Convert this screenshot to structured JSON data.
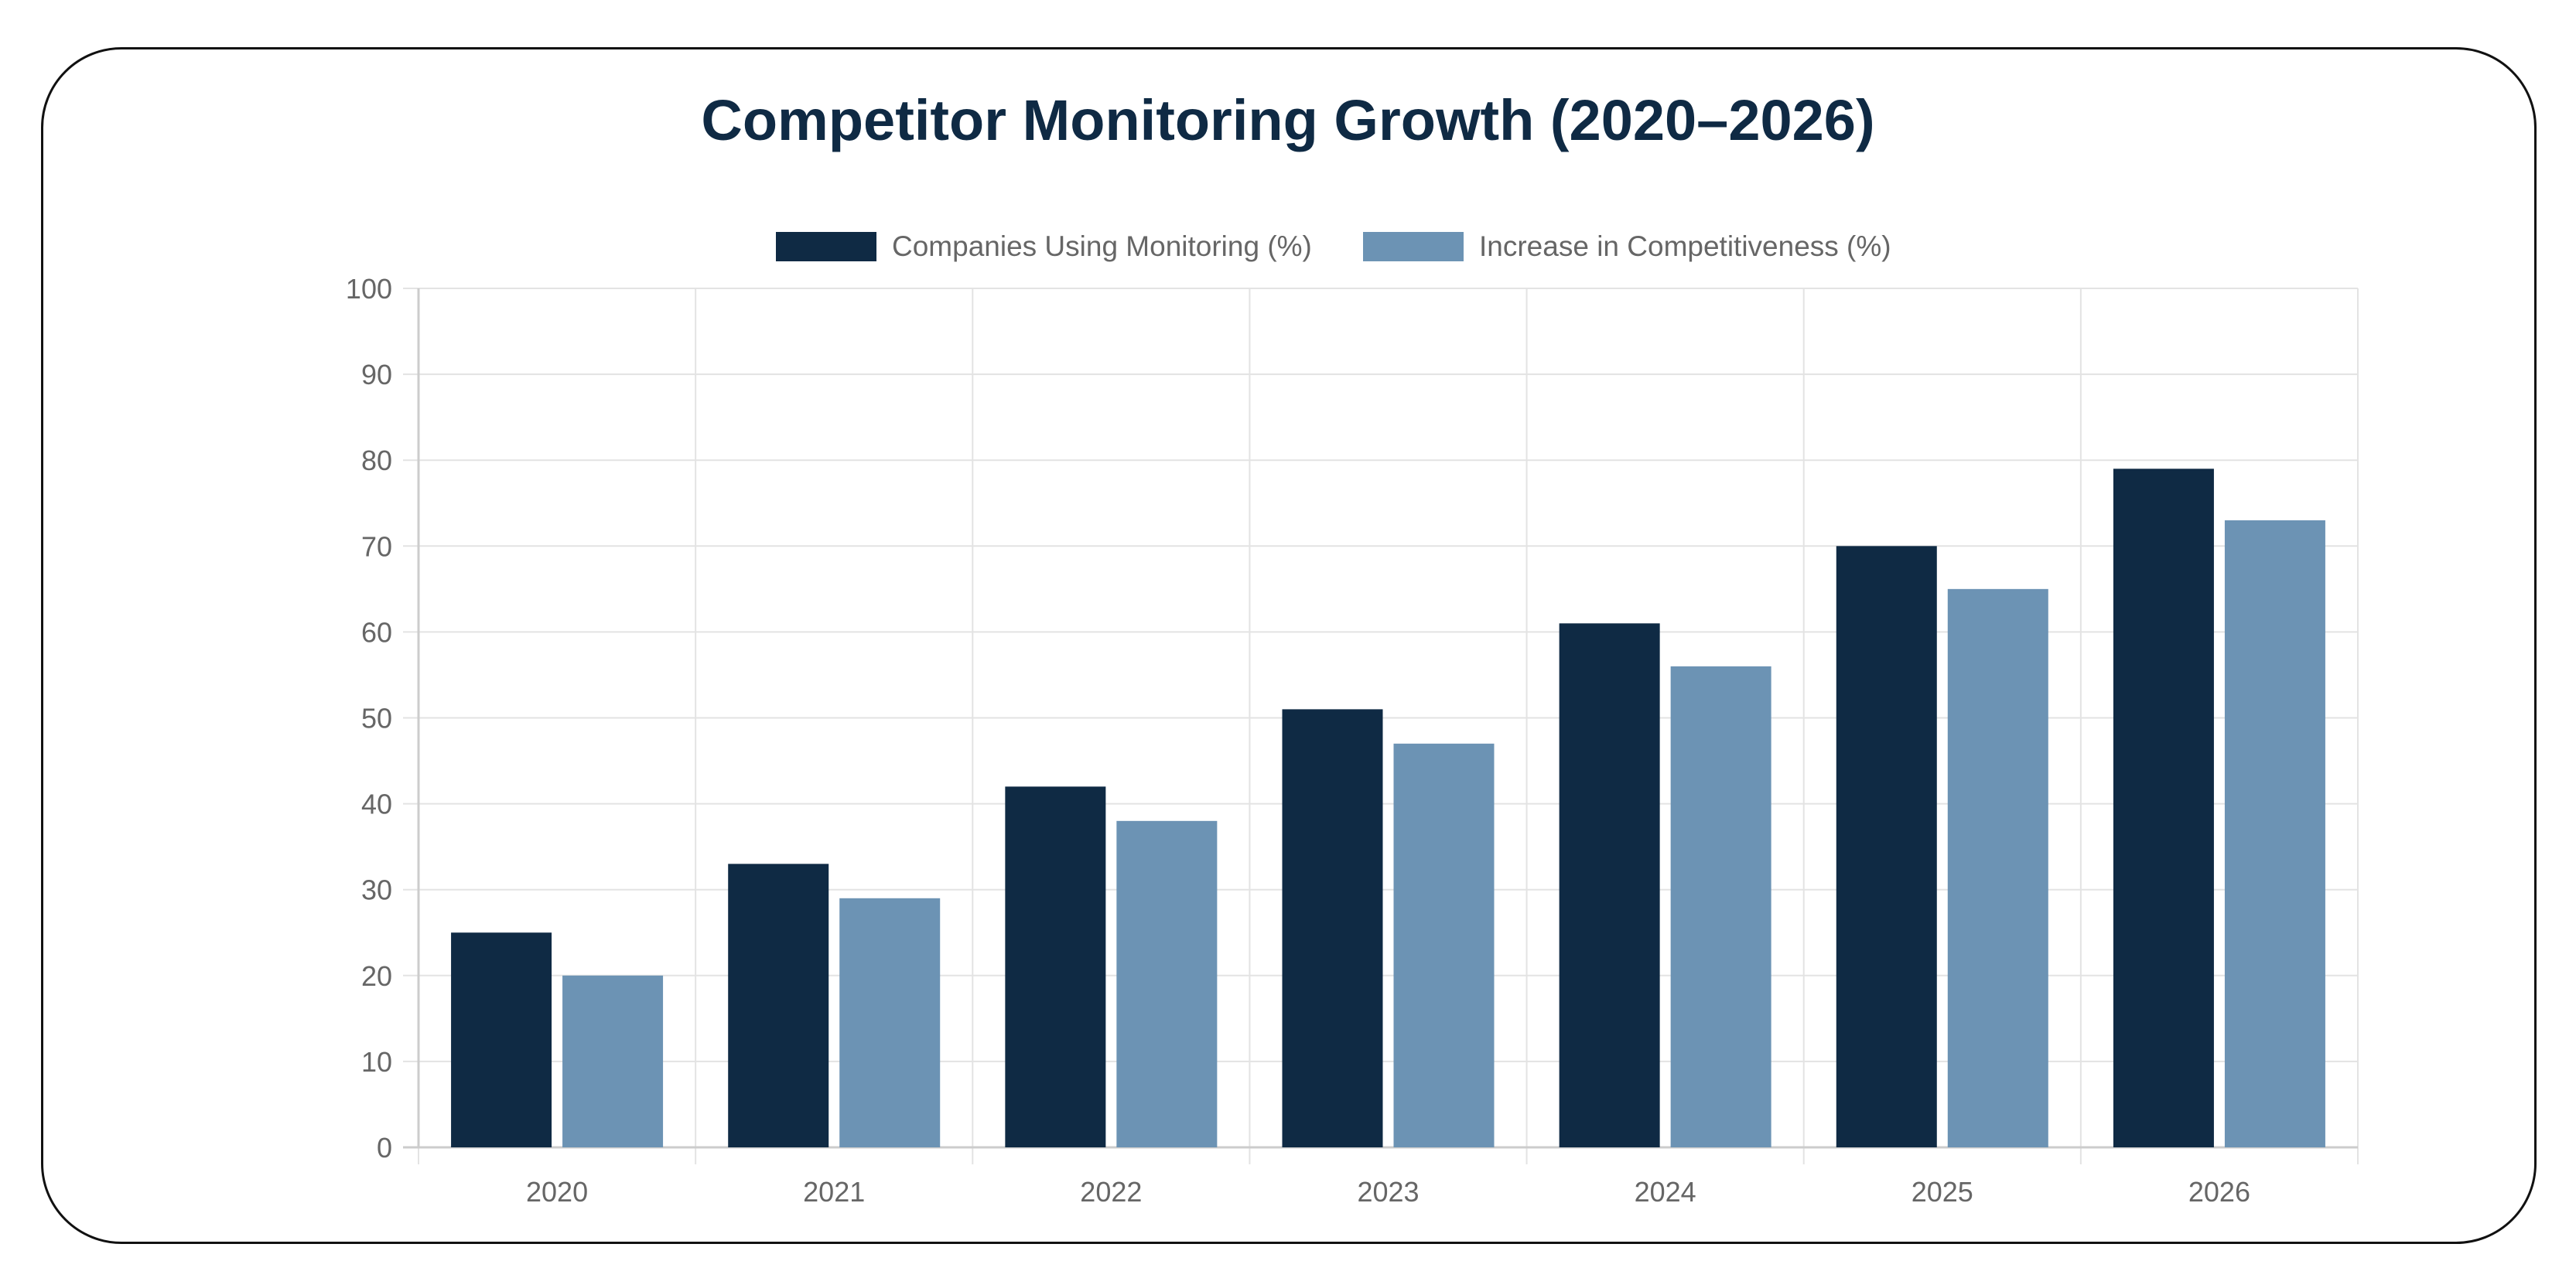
{
  "chart_data": {
    "type": "bar",
    "title": "Competitor Monitoring Growth (2020–2026)",
    "xlabel": "",
    "ylabel": "",
    "categories": [
      "2020",
      "2021",
      "2022",
      "2023",
      "2024",
      "2025",
      "2026"
    ],
    "series": [
      {
        "name": "Companies Using Monitoring (%)",
        "color": "#0f2a44",
        "values": [
          25,
          33,
          42,
          51,
          61,
          70,
          79
        ]
      },
      {
        "name": "Increase in Competitiveness (%)",
        "color": "#6c93b4",
        "values": [
          20,
          29,
          38,
          47,
          56,
          65,
          73
        ]
      }
    ],
    "ylim": [
      0,
      100
    ],
    "yticks": [
      0,
      10,
      20,
      30,
      40,
      50,
      60,
      70,
      80,
      90,
      100
    ],
    "grid": true,
    "legend_position": "top-center"
  }
}
